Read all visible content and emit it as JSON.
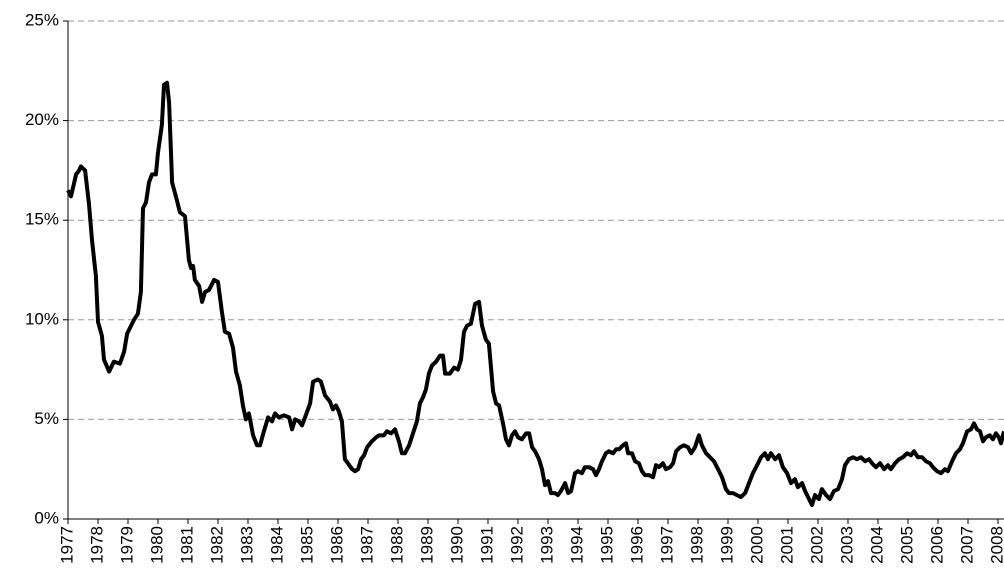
{
  "chart_data": {
    "type": "line",
    "color": "#000000",
    "grid": true,
    "xlim": [
      1977,
      2008.2
    ],
    "ylim": [
      0,
      25
    ],
    "yticks": [
      {
        "value": 0,
        "label": "0%"
      },
      {
        "value": 5,
        "label": "5%"
      },
      {
        "value": 10,
        "label": "10%"
      },
      {
        "value": 15,
        "label": "15%"
      },
      {
        "value": 20,
        "label": "20%"
      },
      {
        "value": 25,
        "label": "25%"
      }
    ],
    "xticks": [
      1977,
      1978,
      1979,
      1980,
      1981,
      1982,
      1983,
      1984,
      1985,
      1986,
      1987,
      1988,
      1989,
      1990,
      1991,
      1992,
      1993,
      1994,
      1995,
      1996,
      1997,
      1998,
      1999,
      2000,
      2001,
      2002,
      2003,
      2004,
      2005,
      2006,
      2007,
      2008
    ],
    "x": [
      1977.0,
      1977.1,
      1977.27,
      1977.37,
      1977.43,
      1977.57,
      1977.7,
      1977.8,
      1977.93,
      1978.0,
      1978.13,
      1978.2,
      1978.37,
      1978.53,
      1978.73,
      1978.87,
      1978.97,
      1979.2,
      1979.33,
      1979.43,
      1979.5,
      1979.6,
      1979.7,
      1979.8,
      1979.93,
      1980.0,
      1980.13,
      1980.2,
      1980.3,
      1980.37,
      1980.47,
      1980.63,
      1980.73,
      1980.9,
      1981.03,
      1981.1,
      1981.17,
      1981.23,
      1981.37,
      1981.47,
      1981.57,
      1981.7,
      1981.87,
      1982.0,
      1982.13,
      1982.23,
      1982.37,
      1982.5,
      1982.6,
      1982.73,
      1982.83,
      1982.93,
      1983.03,
      1983.17,
      1983.3,
      1983.4,
      1983.53,
      1983.67,
      1983.8,
      1983.9,
      1984.03,
      1984.2,
      1984.37,
      1984.47,
      1984.57,
      1984.7,
      1984.8,
      1984.9,
      1985.07,
      1985.17,
      1985.33,
      1985.43,
      1985.57,
      1985.73,
      1985.83,
      1985.93,
      1986.03,
      1986.13,
      1986.23,
      1986.33,
      1986.47,
      1986.57,
      1986.67,
      1986.77,
      1986.87,
      1986.97,
      1987.13,
      1987.27,
      1987.37,
      1987.53,
      1987.63,
      1987.77,
      1987.9,
      1988.03,
      1988.13,
      1988.23,
      1988.37,
      1988.5,
      1988.63,
      1988.73,
      1988.83,
      1988.93,
      1989.03,
      1989.13,
      1989.27,
      1989.4,
      1989.5,
      1989.57,
      1989.73,
      1989.87,
      1990.0,
      1990.1,
      1990.2,
      1990.3,
      1990.43,
      1990.57,
      1990.7,
      1990.8,
      1990.93,
      1991.03,
      1991.17,
      1991.27,
      1991.37,
      1991.5,
      1991.6,
      1991.7,
      1991.8,
      1991.9,
      1992.0,
      1992.13,
      1992.27,
      1992.37,
      1992.47,
      1992.57,
      1992.7,
      1992.8,
      1992.9,
      1993.0,
      1993.1,
      1993.23,
      1993.33,
      1993.43,
      1993.57,
      1993.67,
      1993.77,
      1993.9,
      1994.0,
      1994.13,
      1994.23,
      1994.37,
      1994.5,
      1994.6,
      1994.7,
      1994.8,
      1994.93,
      1995.03,
      1995.17,
      1995.27,
      1995.37,
      1995.5,
      1995.6,
      1995.67,
      1995.8,
      1995.9,
      1996.03,
      1996.13,
      1996.23,
      1996.37,
      1996.5,
      1996.6,
      1996.7,
      1996.83,
      1996.93,
      1997.07,
      1997.17,
      1997.27,
      1997.4,
      1997.53,
      1997.67,
      1997.77,
      1997.9,
      1998.03,
      1998.13,
      1998.27,
      1998.4,
      1998.53,
      1998.67,
      1998.8,
      1998.93,
      1999.03,
      1999.17,
      1999.3,
      1999.43,
      1999.57,
      1999.7,
      1999.83,
      1999.97,
      2000.1,
      2000.23,
      2000.33,
      2000.43,
      2000.57,
      2000.7,
      2000.83,
      2000.97,
      2001.1,
      2001.23,
      2001.33,
      2001.47,
      2001.57,
      2001.67,
      2001.8,
      2001.9,
      2002.03,
      2002.13,
      2002.27,
      2002.4,
      2002.53,
      2002.67,
      2002.8,
      2002.9,
      2003.03,
      2003.17,
      2003.3,
      2003.43,
      2003.57,
      2003.7,
      2003.8,
      2003.93,
      2004.07,
      2004.2,
      2004.33,
      2004.43,
      2004.57,
      2004.7,
      2004.83,
      2004.97,
      2005.1,
      2005.2,
      2005.33,
      2005.47,
      2005.6,
      2005.73,
      2005.83,
      2005.97,
      2006.1,
      2006.23,
      2006.33,
      2006.47,
      2006.6,
      2006.73,
      2006.83,
      2006.97,
      2007.1,
      2007.2,
      2007.3,
      2007.4,
      2007.5,
      2007.6,
      2007.73,
      2007.83,
      2007.93,
      2008.03,
      2008.1,
      2008.2
    ],
    "values": [
      16.5,
      16.2,
      17.3,
      17.5,
      17.7,
      17.5,
      15.8,
      14.0,
      12.2,
      9.9,
      9.2,
      8.0,
      7.4,
      7.9,
      7.8,
      8.4,
      9.3,
      10.0,
      10.3,
      11.4,
      15.6,
      15.9,
      16.9,
      17.3,
      17.3,
      18.4,
      19.8,
      21.8,
      21.9,
      20.9,
      16.9,
      16.0,
      15.4,
      15.2,
      13.0,
      12.6,
      12.7,
      12.0,
      11.7,
      10.9,
      11.4,
      11.5,
      12.0,
      11.9,
      10.4,
      9.4,
      9.3,
      8.6,
      7.4,
      6.7,
      5.7,
      5.0,
      5.3,
      4.2,
      3.7,
      3.7,
      4.4,
      5.1,
      4.9,
      5.3,
      5.1,
      5.2,
      5.1,
      4.5,
      5.0,
      4.9,
      4.7,
      5.1,
      5.8,
      6.9,
      7.0,
      6.9,
      6.2,
      5.9,
      5.5,
      5.7,
      5.4,
      4.9,
      3.0,
      2.8,
      2.5,
      2.4,
      2.5,
      3.0,
      3.2,
      3.6,
      3.9,
      4.1,
      4.2,
      4.2,
      4.4,
      4.3,
      4.5,
      3.9,
      3.3,
      3.3,
      3.7,
      4.3,
      4.9,
      5.8,
      6.1,
      6.5,
      7.3,
      7.7,
      7.9,
      8.2,
      8.2,
      7.3,
      7.3,
      7.6,
      7.5,
      8.0,
      9.4,
      9.7,
      9.8,
      10.8,
      10.9,
      9.7,
      9.0,
      8.8,
      6.4,
      5.8,
      5.7,
      4.8,
      4.0,
      3.7,
      4.2,
      4.4,
      4.1,
      4.0,
      4.3,
      4.3,
      3.6,
      3.4,
      3.0,
      2.5,
      1.7,
      1.9,
      1.3,
      1.3,
      1.2,
      1.4,
      1.8,
      1.3,
      1.4,
      2.3,
      2.4,
      2.3,
      2.6,
      2.6,
      2.5,
      2.2,
      2.5,
      2.9,
      3.3,
      3.4,
      3.3,
      3.5,
      3.5,
      3.7,
      3.8,
      3.3,
      3.3,
      2.9,
      2.8,
      2.4,
      2.2,
      2.2,
      2.1,
      2.7,
      2.6,
      2.8,
      2.5,
      2.6,
      2.8,
      3.4,
      3.6,
      3.7,
      3.6,
      3.3,
      3.6,
      4.2,
      3.7,
      3.3,
      3.1,
      2.9,
      2.5,
      2.1,
      1.5,
      1.3,
      1.3,
      1.2,
      1.1,
      1.3,
      1.8,
      2.3,
      2.7,
      3.1,
      3.3,
      3.0,
      3.3,
      3.0,
      3.2,
      2.6,
      2.3,
      1.8,
      2.0,
      1.6,
      1.8,
      1.4,
      1.1,
      0.7,
      1.2,
      1.0,
      1.5,
      1.2,
      1.0,
      1.4,
      1.5,
      2.0,
      2.7,
      3.0,
      3.1,
      3.0,
      3.1,
      2.9,
      3.0,
      2.8,
      2.6,
      2.8,
      2.5,
      2.7,
      2.5,
      2.8,
      3.0,
      3.1,
      3.3,
      3.2,
      3.4,
      3.1,
      3.1,
      2.9,
      2.8,
      2.6,
      2.4,
      2.3,
      2.5,
      2.4,
      2.9,
      3.3,
      3.5,
      3.8,
      4.4,
      4.5,
      4.8,
      4.5,
      4.4,
      3.9,
      4.1,
      4.2,
      4.0,
      4.3,
      4.1,
      3.8,
      4.4
    ]
  }
}
